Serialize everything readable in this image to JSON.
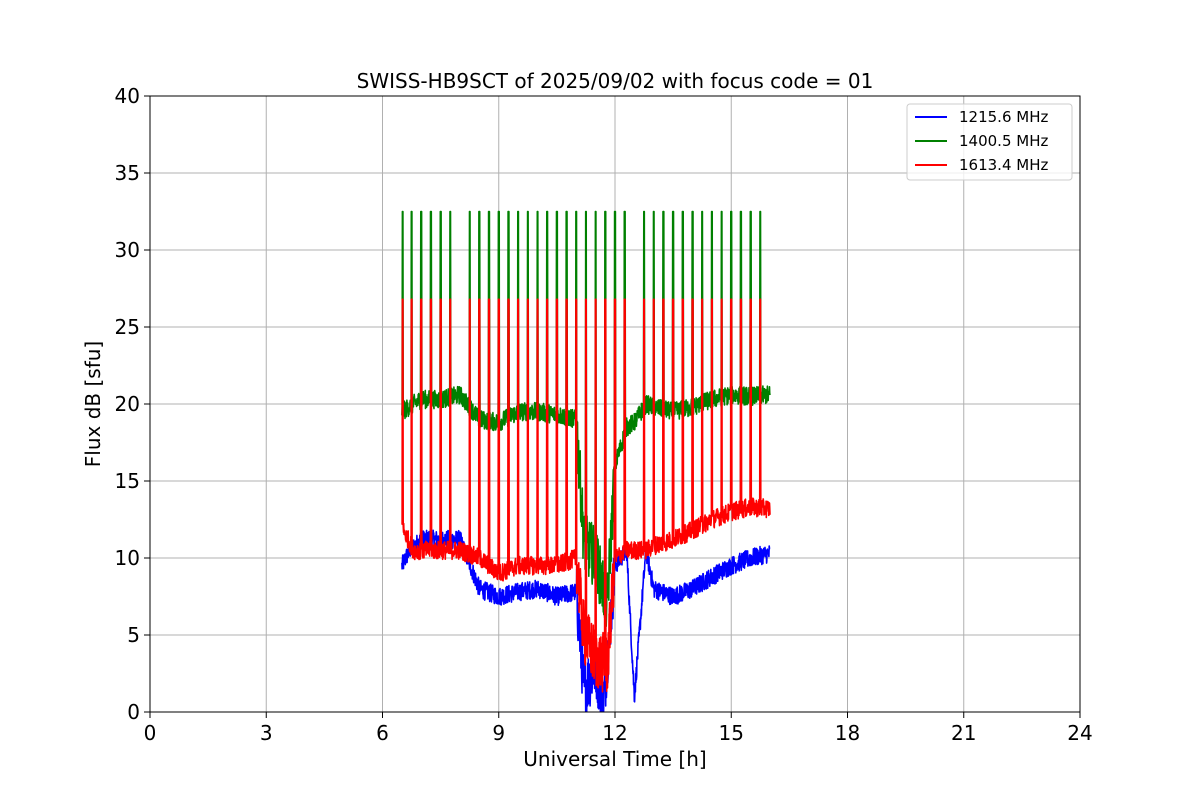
{
  "chart_data": {
    "type": "line",
    "title": "SWISS-HB9SCT of 2025/09/02 with focus code = 01",
    "xlabel": "Universal Time [h]",
    "ylabel": "Flux dB [sfu]",
    "xlim": [
      0,
      24
    ],
    "ylim": [
      0,
      40
    ],
    "xticks": [
      0,
      3,
      6,
      9,
      12,
      15,
      18,
      21,
      24
    ],
    "yticks": [
      0,
      5,
      10,
      15,
      20,
      25,
      30,
      35,
      40
    ],
    "grid": true,
    "legend_position": "top-right",
    "series": [
      {
        "name": "1215.6 MHz",
        "color": "#0000ff",
        "x": [
          6.5,
          6.7,
          7.0,
          7.5,
          8.0,
          8.5,
          9.0,
          9.5,
          10.0,
          10.5,
          11.0,
          11.2,
          11.5,
          11.7,
          12.0,
          12.3,
          12.5,
          12.8,
          13.0,
          13.5,
          14.0,
          14.5,
          15.0,
          15.5,
          16.0
        ],
        "values": [
          9.5,
          10.5,
          11.2,
          11.2,
          11.2,
          8.0,
          7.5,
          7.8,
          8.0,
          7.5,
          7.8,
          1.5,
          3.0,
          0.5,
          9.5,
          10.5,
          1.0,
          10.5,
          8.0,
          7.5,
          8.0,
          8.8,
          9.5,
          10.0,
          10.3
        ]
      },
      {
        "name": "1400.5 MHz",
        "color": "#008000",
        "x": [
          6.5,
          6.8,
          7.0,
          7.5,
          8.0,
          8.5,
          9.0,
          9.5,
          10.0,
          10.5,
          11.0,
          11.2,
          11.5,
          11.8,
          12.0,
          12.3,
          12.5,
          12.8,
          13.0,
          13.5,
          14.0,
          14.5,
          15.0,
          15.5,
          16.0
        ],
        "values": [
          19.5,
          20.0,
          20.3,
          20.3,
          20.6,
          19.0,
          18.8,
          19.5,
          19.5,
          19.3,
          19.0,
          11.0,
          10.0,
          7.0,
          16.0,
          18.5,
          18.8,
          20.0,
          19.8,
          19.5,
          19.8,
          20.3,
          20.6,
          20.5,
          20.6
        ]
      },
      {
        "name": "1613.4 MHz",
        "color": "#ff0000",
        "x": [
          6.5,
          6.8,
          7.0,
          7.5,
          8.0,
          8.5,
          9.0,
          9.5,
          10.0,
          10.5,
          11.0,
          11.2,
          11.5,
          11.8,
          12.0,
          12.3,
          12.5,
          12.8,
          13.0,
          13.5,
          14.0,
          14.5,
          15.0,
          15.5,
          16.0
        ],
        "values": [
          12.0,
          10.5,
          10.5,
          10.5,
          10.5,
          10.0,
          9.0,
          9.5,
          9.5,
          9.5,
          10.0,
          5.0,
          3.5,
          3.0,
          10.0,
          10.5,
          10.5,
          10.5,
          10.8,
          11.2,
          11.8,
          12.5,
          13.0,
          13.3,
          13.2
        ]
      }
    ],
    "spikes": {
      "times": [
        6.52,
        6.75,
        7.0,
        7.25,
        7.5,
        7.75,
        8.25,
        8.5,
        8.75,
        9.0,
        9.25,
        9.5,
        9.75,
        10.0,
        10.25,
        10.5,
        10.75,
        11.0,
        11.25,
        11.5,
        11.75,
        12.0,
        12.25,
        12.75,
        13.0,
        13.25,
        13.5,
        13.75,
        14.0,
        14.25,
        14.5,
        14.75,
        15.0,
        15.25,
        15.5,
        15.75
      ],
      "green_peak": 32.5,
      "red_peak": 26.8
    }
  }
}
